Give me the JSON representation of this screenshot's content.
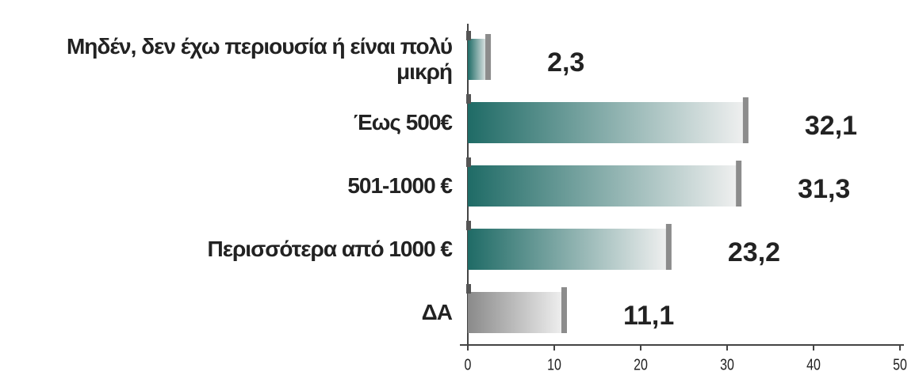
{
  "chart_data": {
    "type": "barh",
    "categories": [
      "Μηδέν, δεν έχω περιουσία ή είναι πολύ μικρή",
      "Έως 500€",
      "501-1000 €",
      "Περισσότερα από 1000 €",
      "ΔΑ"
    ],
    "values": [
      2.3,
      32.1,
      31.3,
      23.2,
      11.1
    ],
    "value_labels": [
      "2,3",
      "32,1",
      "31,3",
      "23,2",
      "11,1"
    ],
    "colors": [
      "#1f6b66",
      "#1f6b66",
      "#1f6b66",
      "#1f6b66",
      "#8a8a8a"
    ],
    "xlim": [
      0,
      50
    ],
    "xticks": [
      0,
      10,
      20,
      30,
      40,
      50
    ]
  }
}
